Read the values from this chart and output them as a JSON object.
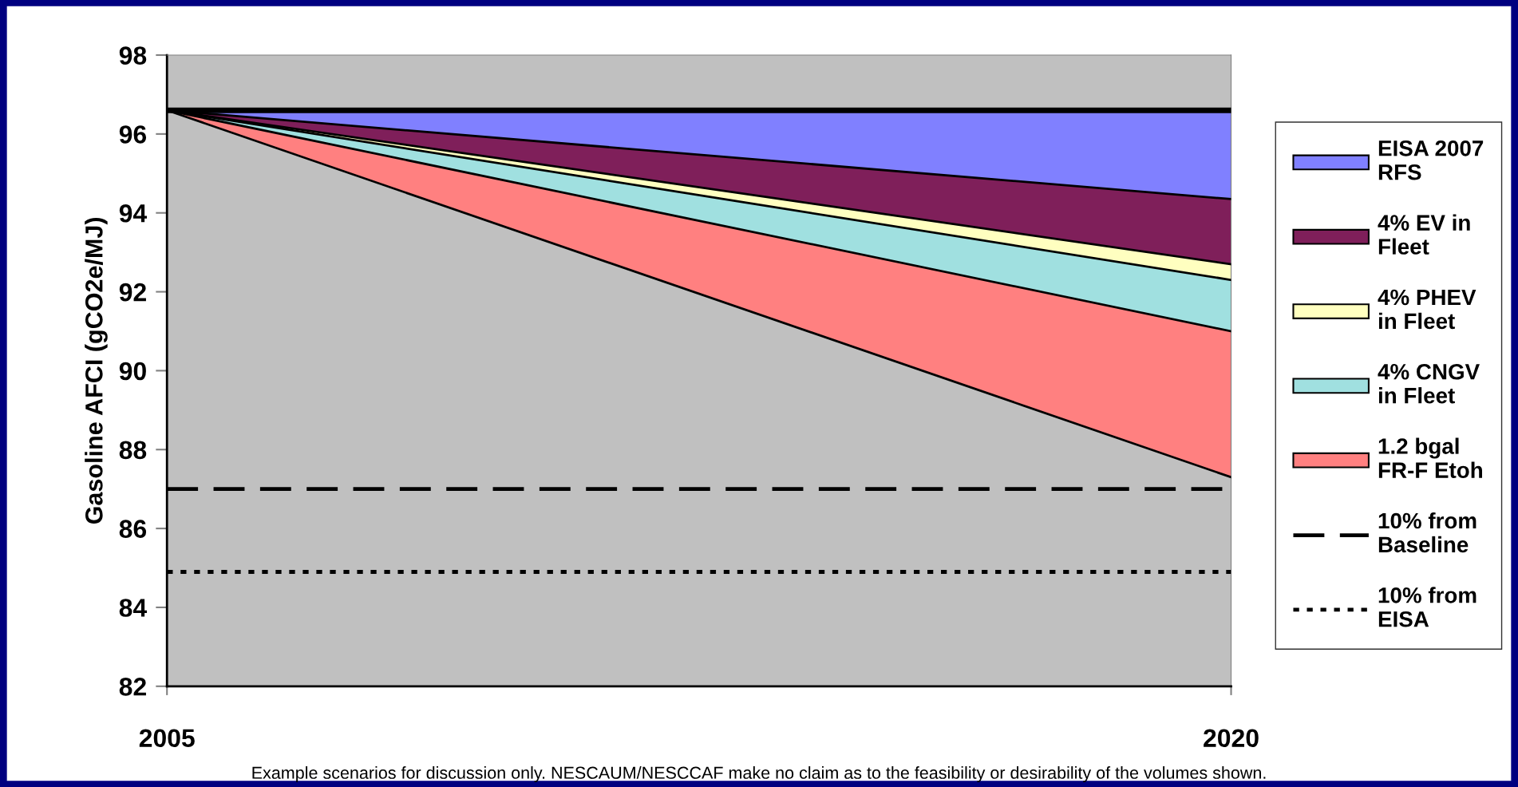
{
  "chart_data": {
    "type": "area",
    "ylabel": "Gasoline AFCI (gCO2e/MJ)",
    "x": [
      2005,
      2020
    ],
    "xlim": [
      2005,
      2020
    ],
    "xticks": [
      2005,
      2020
    ],
    "ylim": [
      82,
      98
    ],
    "yticks": [
      82,
      84,
      86,
      88,
      90,
      92,
      94,
      96,
      98
    ],
    "series": [
      {
        "type": "line",
        "color": "#000000",
        "values": [
          96.6,
          96.6
        ]
      },
      {
        "name": "EISA 2007\nRFS",
        "color": "#8080ff",
        "values": [
          96.6,
          94.35
        ]
      },
      {
        "name": "4% EV in\nFleet",
        "color": "#7f1f5a",
        "values": [
          96.6,
          92.7
        ]
      },
      {
        "name": "4% PHEV\nin Fleet",
        "color": "#ffffc0",
        "values": [
          96.6,
          92.3
        ]
      },
      {
        "name": "4% CNGV\nin Fleet",
        "color": "#a0e0e0",
        "values": [
          96.6,
          91.0
        ]
      },
      {
        "name": "1.2 bgal\nFR-F Etoh",
        "color": "#ff8080",
        "values": [
          96.6,
          87.3
        ]
      }
    ],
    "ref_lines": [
      {
        "axis": "y",
        "value": 87.0,
        "label": "10% from\nBaseline",
        "color": "#000000",
        "line_style": "dashed"
      },
      {
        "axis": "y",
        "value": 84.9,
        "label": "10% from\nEISA",
        "color": "#000000",
        "line_style": "dotted"
      }
    ],
    "annotations": [
      "Example scenarios for discussion only. NESCAUM/NESCCAF make no claim as to the feasibility or desirability of the volumes shown."
    ],
    "legend": "right",
    "grid": false
  }
}
